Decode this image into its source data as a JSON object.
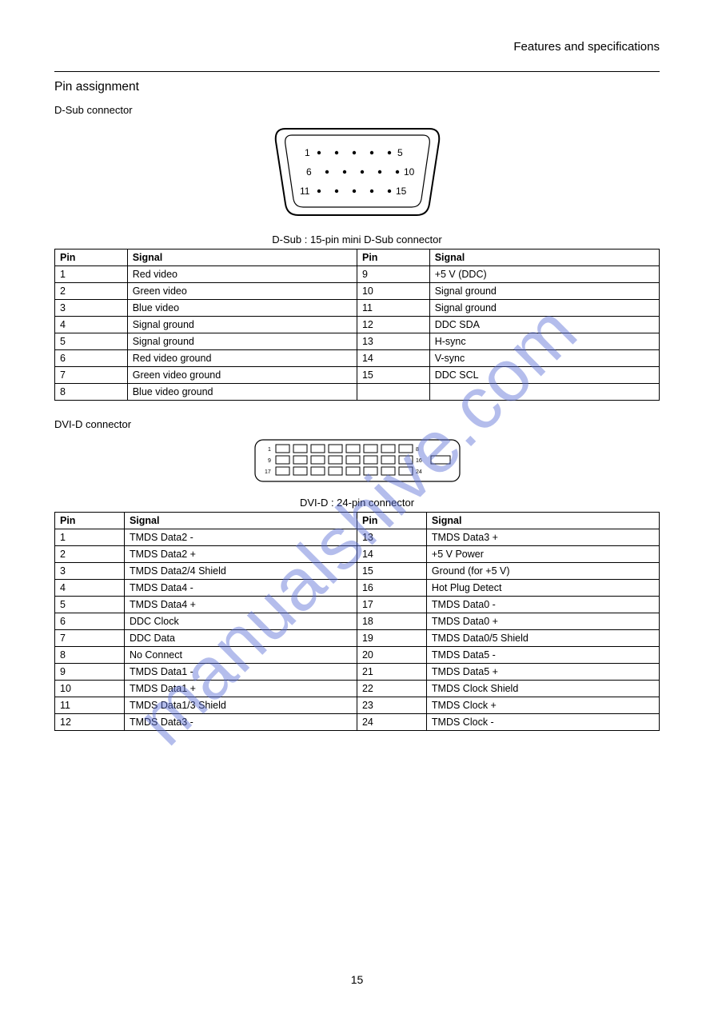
{
  "header": {
    "title": "Features and specifications"
  },
  "dsub": {
    "section_title": "Pin assignment",
    "sub_label": "D-Sub connector",
    "caption": "D-Sub : 15-pin mini D-Sub connector",
    "columns": [
      "Pin",
      "Signal",
      "Pin",
      "Signal"
    ],
    "rows": [
      [
        "1",
        "Red video",
        "9",
        "+5 V (DDC)"
      ],
      [
        "2",
        "Green video",
        "10",
        "Signal ground"
      ],
      [
        "3",
        "Blue video",
        "11",
        "Signal ground"
      ],
      [
        "4",
        "Signal ground",
        "12",
        "DDC SDA"
      ],
      [
        "5",
        "Signal ground",
        "13",
        "H-sync"
      ],
      [
        "6",
        "Red video ground",
        "14",
        "V-sync"
      ],
      [
        "7",
        "Green video ground",
        "15",
        "DDC SCL"
      ],
      [
        "8",
        "Blue video ground",
        "",
        ""
      ]
    ],
    "diagram": {
      "pin_numbers": [
        "1",
        "5",
        "6",
        "10",
        "11",
        "15"
      ]
    }
  },
  "dvi": {
    "sub_label": "DVI-D connector",
    "caption": "DVI-D : 24-pin connector",
    "columns": [
      "Pin",
      "Signal",
      "Pin",
      "Signal"
    ],
    "rows": [
      [
        "1",
        "TMDS Data2 -",
        "13",
        "TMDS Data3 +"
      ],
      [
        "2",
        "TMDS Data2 +",
        "14",
        "+5 V Power"
      ],
      [
        "3",
        "TMDS Data2/4 Shield",
        "15",
        "Ground (for +5 V)"
      ],
      [
        "4",
        "TMDS Data4 -",
        "16",
        "Hot Plug Detect"
      ],
      [
        "5",
        "TMDS Data4 +",
        "17",
        "TMDS Data0 -"
      ],
      [
        "6",
        "DDC Clock",
        "18",
        "TMDS Data0 +"
      ],
      [
        "7",
        "DDC Data",
        "19",
        "TMDS Data0/5 Shield"
      ],
      [
        "8",
        "No Connect",
        "20",
        "TMDS Data5 -"
      ],
      [
        "9",
        "TMDS Data1 -",
        "21",
        "TMDS Data5 +"
      ],
      [
        "10",
        "TMDS Data1 +",
        "22",
        "TMDS Clock Shield"
      ],
      [
        "11",
        "TMDS Data1/3 Shield",
        "23",
        "TMDS Clock +"
      ],
      [
        "12",
        "TMDS Data3 -",
        "24",
        "TMDS Clock -"
      ]
    ],
    "diagram": {
      "row_labels_left": [
        "1",
        "9",
        "17"
      ],
      "row_labels_right": [
        "8",
        "16",
        "24"
      ]
    }
  },
  "page_number": "15"
}
